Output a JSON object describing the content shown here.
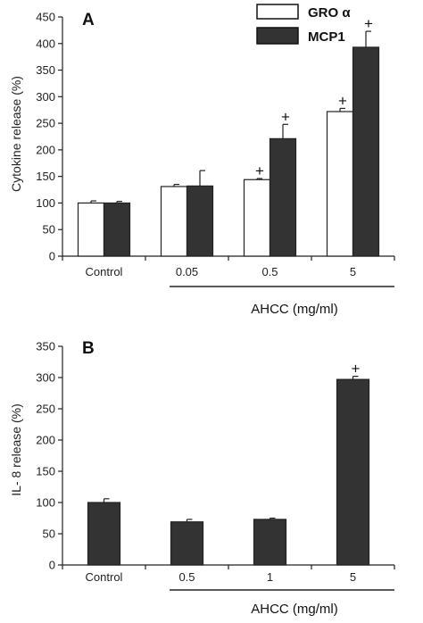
{
  "chart_data": [
    {
      "panel": "A",
      "type": "bar",
      "ylabel": "Cytokine release (%)",
      "ylim": [
        0,
        450
      ],
      "yticks": [
        0,
        50,
        100,
        150,
        200,
        250,
        300,
        350,
        400,
        450
      ],
      "categories": [
        "Control",
        "0.05",
        "0.5",
        "5"
      ],
      "group_label": "AHCC (mg/ml)",
      "legend_position": "top-right",
      "series": [
        {
          "name": "GRO α",
          "color": "#ffffff",
          "values": [
            100,
            131,
            144,
            272
          ],
          "errors": [
            4,
            4,
            2,
            6
          ],
          "significant": [
            false,
            false,
            true,
            true
          ]
        },
        {
          "name": "MCP1",
          "color": "#333333",
          "values": [
            100,
            132,
            221,
            393
          ],
          "errors": [
            3,
            29,
            27,
            30
          ],
          "significant": [
            false,
            false,
            true,
            true
          ]
        }
      ],
      "sig_symbol": "+"
    },
    {
      "panel": "B",
      "type": "bar",
      "ylabel": "IL- 8  release (%)",
      "ylim": [
        0,
        350
      ],
      "yticks": [
        0,
        50,
        100,
        150,
        200,
        250,
        300,
        350
      ],
      "categories": [
        "Control",
        "0.5",
        "1",
        "5"
      ],
      "group_label": "AHCC (mg/ml)",
      "series": [
        {
          "color": "#333333",
          "values": [
            100,
            69,
            73,
            297
          ],
          "errors": [
            6,
            4,
            2,
            5
          ],
          "significant": [
            false,
            false,
            false,
            true
          ]
        }
      ],
      "sig_symbol": "+"
    }
  ]
}
